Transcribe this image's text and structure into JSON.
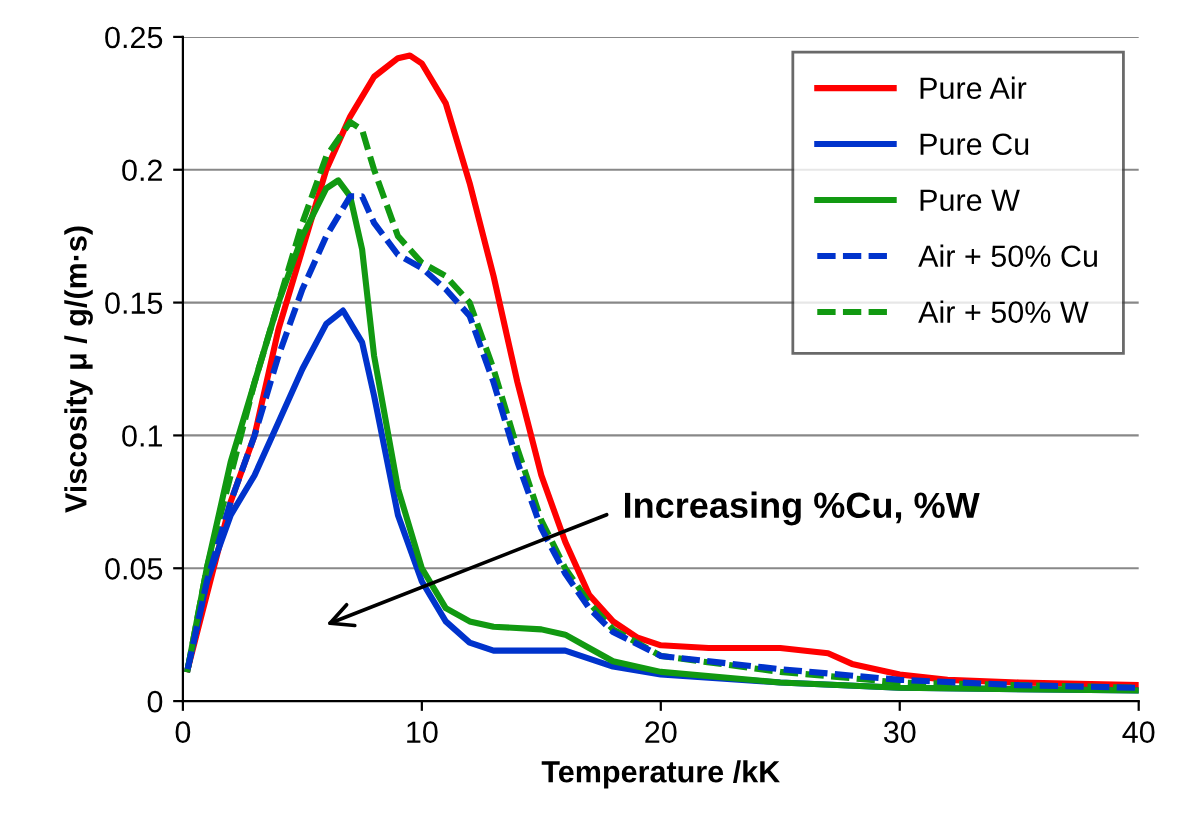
{
  "chart_data": {
    "type": "line",
    "xlabel": "Temperature /kK",
    "ylabel": "Viscosity μ / g/(m·s)",
    "xlim": [
      0,
      40
    ],
    "xticks": [
      0,
      10,
      20,
      30,
      40
    ],
    "ylim": [
      0,
      0.25
    ],
    "yticks": [
      0,
      0.05,
      0.1,
      0.15,
      0.2,
      0.25
    ],
    "grid": "y",
    "legend": "top right",
    "annotations": [
      "Increasing %Cu, %W"
    ],
    "series": [
      {
        "name": "Pure Air",
        "color": "#ff0000",
        "line_style": "solid",
        "x": [
          0.2,
          1,
          2,
          3,
          4,
          5,
          6,
          7,
          8,
          9,
          9.5,
          10,
          11,
          12,
          13,
          14,
          15,
          16,
          17,
          18,
          19,
          20,
          22,
          25,
          27,
          28,
          30,
          32,
          35,
          40
        ],
        "values": [
          0.012,
          0.04,
          0.075,
          0.1,
          0.14,
          0.17,
          0.2,
          0.22,
          0.235,
          0.242,
          0.243,
          0.24,
          0.225,
          0.195,
          0.16,
          0.12,
          0.085,
          0.06,
          0.04,
          0.03,
          0.024,
          0.021,
          0.02,
          0.02,
          0.018,
          0.014,
          0.01,
          0.008,
          0.007,
          0.006
        ]
      },
      {
        "name": "Pure Cu",
        "color": "#0033cc",
        "line_style": "solid",
        "x": [
          0.2,
          1,
          2,
          3,
          4,
          5,
          6,
          6.7,
          7.5,
          8,
          9,
          10,
          11,
          12,
          13,
          15,
          16,
          17,
          18,
          20,
          25,
          30,
          40
        ],
        "values": [
          0.012,
          0.045,
          0.07,
          0.085,
          0.105,
          0.125,
          0.142,
          0.147,
          0.135,
          0.115,
          0.07,
          0.045,
          0.03,
          0.022,
          0.019,
          0.019,
          0.019,
          0.016,
          0.013,
          0.01,
          0.007,
          0.005,
          0.004
        ]
      },
      {
        "name": "Pure W",
        "color": "#119911",
        "line_style": "solid",
        "x": [
          0.2,
          1,
          2,
          3,
          4,
          5,
          6,
          6.5,
          7,
          7.5,
          8,
          9,
          10,
          11,
          12,
          13,
          15,
          16,
          17,
          18,
          20,
          25,
          30,
          40
        ],
        "values": [
          0.012,
          0.05,
          0.09,
          0.12,
          0.15,
          0.175,
          0.193,
          0.196,
          0.19,
          0.17,
          0.13,
          0.08,
          0.05,
          0.035,
          0.03,
          0.028,
          0.027,
          0.025,
          0.02,
          0.015,
          0.011,
          0.007,
          0.005,
          0.004
        ]
      },
      {
        "name": "Air + 50% Cu",
        "color": "#0033cc",
        "line_style": "dashed",
        "x": [
          0.2,
          1,
          2,
          3,
          4,
          5,
          6,
          7,
          7.5,
          8,
          9,
          10,
          11,
          12,
          13,
          14,
          15,
          16,
          17,
          18,
          20,
          25,
          30,
          35,
          40
        ],
        "values": [
          0.012,
          0.045,
          0.075,
          0.1,
          0.13,
          0.155,
          0.175,
          0.19,
          0.19,
          0.18,
          0.168,
          0.163,
          0.155,
          0.145,
          0.12,
          0.09,
          0.065,
          0.048,
          0.035,
          0.026,
          0.017,
          0.012,
          0.008,
          0.006,
          0.005
        ]
      },
      {
        "name": "Air + 50% W",
        "color": "#119911",
        "line_style": "dashed",
        "x": [
          0.2,
          1,
          2,
          3,
          4,
          5,
          6,
          7,
          7.5,
          8,
          9,
          10,
          11,
          12,
          13,
          14,
          15,
          16,
          17,
          18,
          20,
          25,
          30,
          35,
          40
        ],
        "values": [
          0.012,
          0.05,
          0.085,
          0.12,
          0.15,
          0.18,
          0.205,
          0.218,
          0.215,
          0.2,
          0.175,
          0.165,
          0.16,
          0.15,
          0.125,
          0.095,
          0.068,
          0.05,
          0.037,
          0.027,
          0.017,
          0.011,
          0.007,
          0.006,
          0.005
        ]
      }
    ]
  }
}
